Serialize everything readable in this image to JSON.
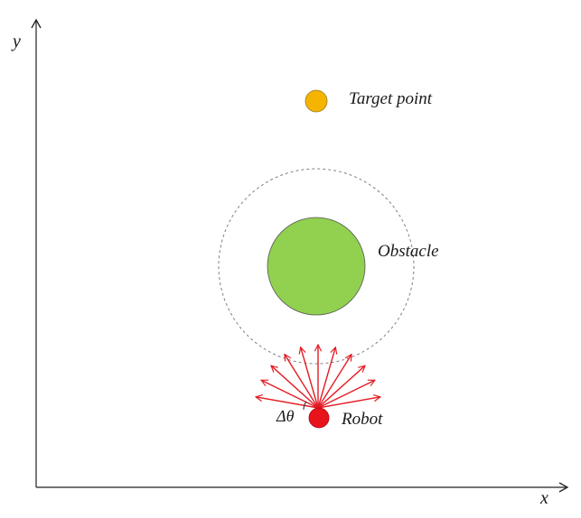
{
  "axes": {
    "x_label": "x",
    "y_label": "y",
    "color": "#222222"
  },
  "labels": {
    "target": "Target point",
    "obstacle": "Obstacle",
    "robot": "Robot",
    "angle": "Δθ"
  },
  "colors": {
    "target_fill": "#f5b400",
    "obstacle_fill": "#92d050",
    "robot_fill": "#e8141b",
    "ray_color": "#e31b23",
    "boundary_color": "#808080",
    "outline": "#444444"
  },
  "rays": {
    "count": 11,
    "angles_deg": [
      10,
      26,
      42,
      58,
      74,
      90,
      106,
      122,
      138,
      154,
      170
    ]
  }
}
